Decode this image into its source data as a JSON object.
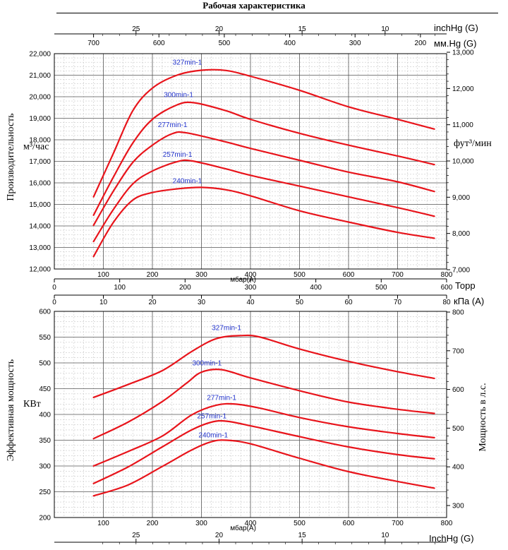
{
  "title": "Рабочая характеристика",
  "chart_data": [
    {
      "type": "line",
      "name_hint": "capacity",
      "title": "",
      "xlabel": "мбар(A)",
      "ylabel": "Производительность",
      "ylabel_unit": "м³/час",
      "y2label": "фут³/мин",
      "xlim": [
        0,
        800
      ],
      "ylim": [
        12000,
        22000
      ],
      "x_ticks": [
        100,
        200,
        300,
        400,
        500,
        600,
        700,
        800
      ],
      "y_ticks": [
        12000,
        13000,
        14000,
        15000,
        16000,
        17000,
        18000,
        19000,
        20000,
        21000,
        22000
      ],
      "y_tick_labels": [
        "12,000",
        "13,000",
        "14,000",
        "15,000",
        "16,000",
        "17,000",
        "18,000",
        "19,000",
        "20,000",
        "21,000",
        "22,000"
      ],
      "y2_ticks": [
        7000,
        8000,
        9000,
        10000,
        11000,
        12000,
        13000
      ],
      "y2_tick_labels": [
        "7,000",
        "8,000",
        "9,000",
        "10,000",
        "11,000",
        "12,000",
        "13,000"
      ],
      "top_axis_inchHg": {
        "label": "inchHg (G)",
        "ticks": [
          "25",
          "20",
          "15",
          "10"
        ],
        "values": [
          25,
          20,
          15,
          10
        ]
      },
      "top_axis_mmHg": {
        "label": "мм.Hg (G)",
        "ticks": [
          "700",
          "600",
          "500",
          "400",
          "300",
          "200"
        ],
        "values": [
          700,
          600,
          500,
          400,
          300,
          200
        ]
      },
      "bottom_axis_torr": {
        "label": "Торр",
        "ticks": [
          "0",
          "100",
          "200",
          "300",
          "400",
          "500",
          "600"
        ],
        "values": [
          0,
          100,
          200,
          300,
          400,
          500,
          600
        ]
      },
      "bottom_axis_kpa": {
        "label": "кПа (A)",
        "ticks": [
          "0",
          "10",
          "20",
          "30",
          "40",
          "50",
          "60",
          "70",
          "80"
        ],
        "values": [
          0,
          10,
          20,
          30,
          40,
          50,
          60,
          70,
          80
        ]
      },
      "series": [
        {
          "name": "327min-1",
          "x": [
            80,
            120,
            160,
            200,
            250,
            300,
            350,
            400,
            500,
            600,
            700,
            775
          ],
          "values": [
            15350,
            17350,
            19350,
            20400,
            21000,
            21230,
            21220,
            20950,
            20300,
            19530,
            18950,
            18500
          ]
        },
        {
          "name": "300min-1",
          "x": [
            80,
            120,
            160,
            200,
            250,
            285,
            350,
            400,
            500,
            600,
            700,
            775
          ],
          "values": [
            14500,
            16250,
            17850,
            18950,
            19620,
            19720,
            19350,
            18950,
            18300,
            17750,
            17250,
            16850
          ]
        },
        {
          "name": "277min-1",
          "x": [
            80,
            120,
            160,
            200,
            240,
            270,
            350,
            400,
            500,
            600,
            700,
            775
          ],
          "values": [
            14030,
            15600,
            16950,
            17750,
            18280,
            18320,
            17900,
            17600,
            17050,
            16500,
            16050,
            15600
          ]
        },
        {
          "name": "257min-1",
          "x": [
            80,
            120,
            160,
            200,
            250,
            280,
            350,
            400,
            500,
            600,
            700,
            775
          ],
          "values": [
            13280,
            14750,
            15950,
            16550,
            16980,
            17020,
            16650,
            16350,
            15850,
            15350,
            14850,
            14450
          ]
        },
        {
          "name": "240min-1",
          "x": [
            80,
            120,
            160,
            200,
            250,
            300,
            350,
            400,
            500,
            600,
            700,
            775
          ],
          "values": [
            12580,
            14150,
            15200,
            15550,
            15720,
            15790,
            15680,
            15400,
            14700,
            14180,
            13700,
            13430
          ]
        }
      ]
    },
    {
      "type": "line",
      "name_hint": "power",
      "title": "",
      "xlabel": "мбар(A)",
      "ylabel": "Эффективная мощность",
      "ylabel_unit": "КВт",
      "y2label": "Мощность в л.с.",
      "xlim": [
        0,
        800
      ],
      "ylim": [
        200,
        600
      ],
      "x_ticks": [
        100,
        200,
        300,
        400,
        500,
        600,
        700,
        800
      ],
      "y_ticks": [
        200,
        250,
        300,
        350,
        400,
        450,
        500,
        550,
        600
      ],
      "y_tick_labels": [
        "200",
        "250",
        "300",
        "350",
        "400",
        "450",
        "500",
        "550",
        "600"
      ],
      "y2_ticks": [
        300,
        400,
        500,
        600,
        700,
        800
      ],
      "y2_tick_labels": [
        "300",
        "400",
        "500",
        "600",
        "700",
        "800"
      ],
      "bottom_axis_inchHg": {
        "label": "InchHg (G)",
        "ticks": [
          "25",
          "20",
          "15",
          "10"
        ],
        "values": [
          25,
          20,
          15,
          10
        ]
      },
      "series": [
        {
          "name": "327min-1",
          "x": [
            80,
            150,
            220,
            280,
            330,
            380,
            420,
            500,
            600,
            700,
            775
          ],
          "values": [
            433,
            458,
            485,
            522,
            547,
            553,
            550,
            527,
            503,
            483,
            470
          ]
        },
        {
          "name": "300min-1",
          "x": [
            80,
            150,
            220,
            270,
            300,
            340,
            400,
            500,
            600,
            700,
            775
          ],
          "values": [
            353,
            385,
            425,
            461,
            482,
            487,
            471,
            446,
            424,
            410,
            402
          ]
        },
        {
          "name": "277min-1",
          "x": [
            80,
            150,
            220,
            280,
            330,
            370,
            420,
            500,
            600,
            700,
            775
          ],
          "values": [
            300,
            328,
            358,
            399,
            418,
            420,
            412,
            394,
            376,
            363,
            355
          ]
        },
        {
          "name": "257min-1",
          "x": [
            80,
            150,
            220,
            280,
            320,
            350,
            400,
            500,
            600,
            700,
            775
          ],
          "values": [
            266,
            298,
            337,
            370,
            385,
            387,
            378,
            357,
            337,
            322,
            314
          ]
        },
        {
          "name": "240min-1",
          "x": [
            80,
            150,
            220,
            280,
            320,
            350,
            400,
            500,
            600,
            700,
            775
          ],
          "values": [
            242,
            263,
            299,
            331,
            347,
            350,
            343,
            315,
            289,
            270,
            257
          ]
        }
      ]
    }
  ]
}
